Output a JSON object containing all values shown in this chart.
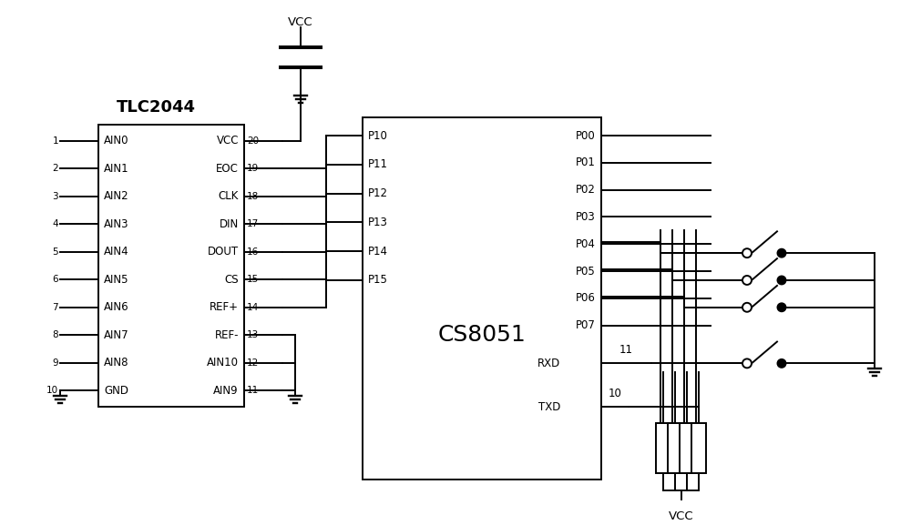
{
  "line_color": "#000000",
  "line_width": 1.4,
  "font_size": 8.5,
  "title_font_size": 13,
  "cs_label_font_size": 18,
  "tlc_title": "TLC2044",
  "cs_title": "CS8051",
  "tlc_left_pins": [
    "1",
    "2",
    "3",
    "4",
    "5",
    "6",
    "7",
    "8",
    "9",
    "10"
  ],
  "tlc_left_labels": [
    "AIN0",
    "AIN1",
    "AIN2",
    "AIN3",
    "AIN4",
    "AIN5",
    "AIN6",
    "AIN7",
    "AIN8",
    "GND"
  ],
  "tlc_right_labels": [
    "VCC",
    "EOC",
    "CLK",
    "DIN",
    "DOUT",
    "CS",
    "REF+",
    "REF-",
    "AIN10",
    "AIN9"
  ],
  "tlc_right_pins": [
    "20",
    "19",
    "18",
    "17",
    "16",
    "15",
    "14",
    "13",
    "12",
    "11"
  ],
  "cs_left_labels": [
    "P10",
    "P11",
    "P12",
    "P13",
    "P14",
    "P15"
  ],
  "cs_right_labels": [
    "P00",
    "P01",
    "P02",
    "P03",
    "P04",
    "P05",
    "P06",
    "P07"
  ],
  "vcc_label": "VCC",
  "rxd_label": "RXD",
  "txd_label": "TXD",
  "pin11_label": "11",
  "pin10_label": "10"
}
